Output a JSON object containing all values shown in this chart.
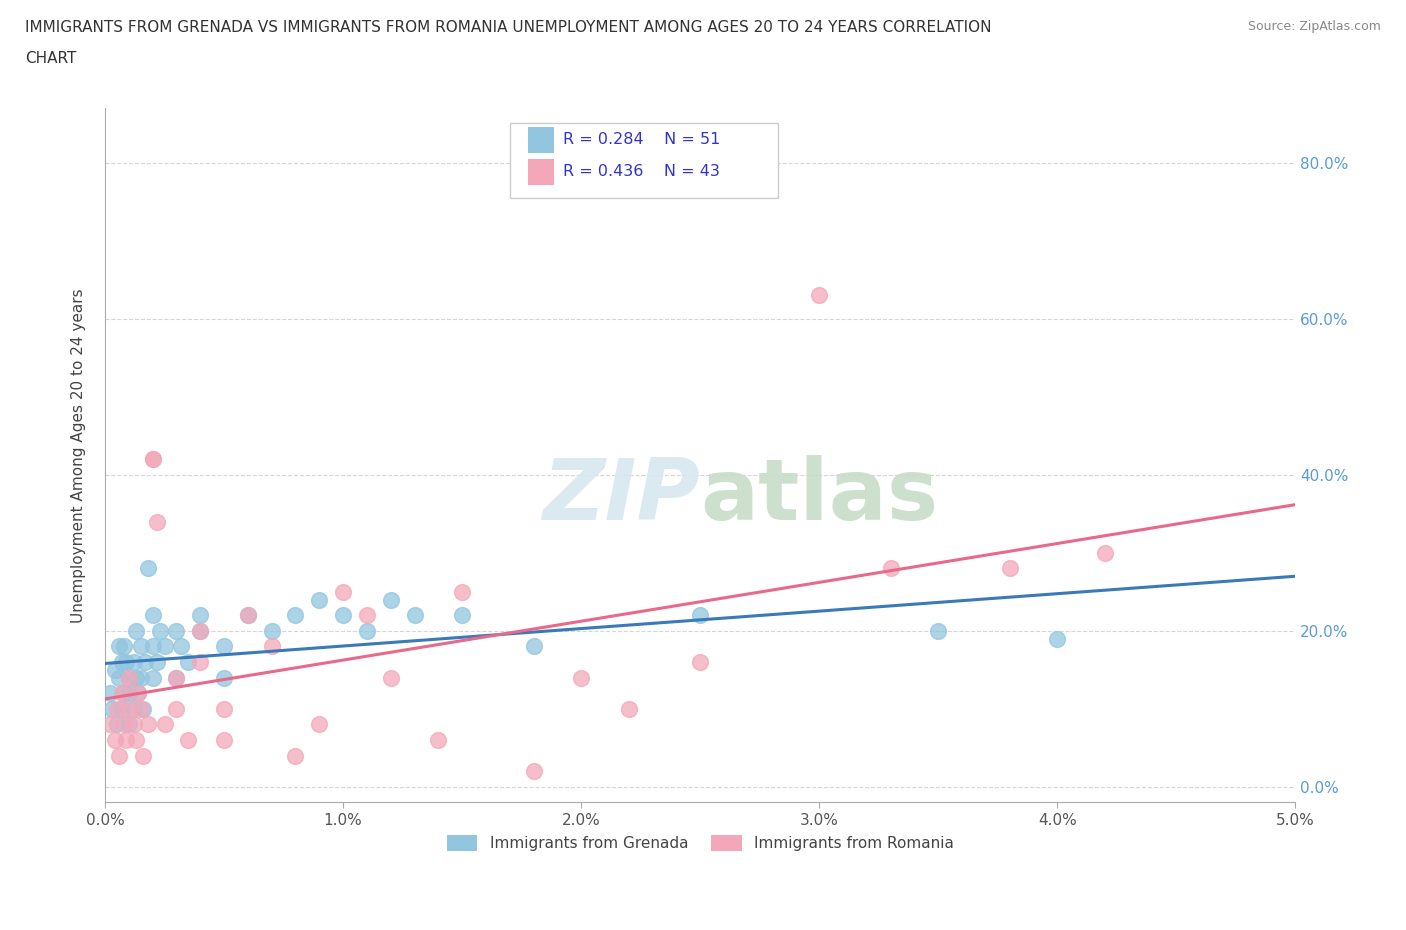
{
  "title_line1": "IMMIGRANTS FROM GRENADA VS IMMIGRANTS FROM ROMANIA UNEMPLOYMENT AMONG AGES 20 TO 24 YEARS CORRELATION",
  "title_line2": "CHART",
  "source": "Source: ZipAtlas.com",
  "ylabel": "Unemployment Among Ages 20 to 24 years",
  "xlim": [
    0.0,
    0.05
  ],
  "ylim": [
    -0.02,
    0.87
  ],
  "yticks": [
    0.0,
    0.2,
    0.4,
    0.6,
    0.8
  ],
  "ytick_labels": [
    "0.0%",
    "20.0%",
    "40.0%",
    "60.0%",
    "80.0%"
  ],
  "xticks": [
    0.0,
    0.01,
    0.02,
    0.03,
    0.04,
    0.05
  ],
  "xtick_labels": [
    "0.0%",
    "1.0%",
    "2.0%",
    "3.0%",
    "4.0%",
    "5.0%"
  ],
  "grenada_R": "R = 0.284",
  "grenada_N": "N = 51",
  "romania_R": "R = 0.436",
  "romania_N": "N = 43",
  "blue_color": "#92c5de",
  "pink_color": "#f4a7b9",
  "blue_line_color": "#3a7ab8",
  "pink_line_color": "#e8698a",
  "legend_text_color": "#3333cc",
  "tick_color": "#5a9bd5",
  "grenada_x": [
    0.0002,
    0.0003,
    0.0004,
    0.0005,
    0.0006,
    0.0006,
    0.0007,
    0.0007,
    0.0008,
    0.0008,
    0.0009,
    0.001,
    0.001,
    0.001,
    0.0012,
    0.0012,
    0.0013,
    0.0013,
    0.0014,
    0.0015,
    0.0015,
    0.0016,
    0.0017,
    0.0018,
    0.002,
    0.002,
    0.002,
    0.0022,
    0.0023,
    0.0025,
    0.003,
    0.003,
    0.0032,
    0.0035,
    0.004,
    0.004,
    0.005,
    0.005,
    0.006,
    0.007,
    0.008,
    0.009,
    0.01,
    0.011,
    0.012,
    0.013,
    0.015,
    0.018,
    0.025,
    0.035,
    0.04
  ],
  "grenada_y": [
    0.12,
    0.1,
    0.15,
    0.08,
    0.14,
    0.18,
    0.1,
    0.16,
    0.12,
    0.18,
    0.16,
    0.12,
    0.08,
    0.14,
    0.16,
    0.1,
    0.2,
    0.14,
    0.12,
    0.18,
    0.14,
    0.1,
    0.16,
    0.28,
    0.14,
    0.18,
    0.22,
    0.16,
    0.2,
    0.18,
    0.14,
    0.2,
    0.18,
    0.16,
    0.2,
    0.22,
    0.18,
    0.14,
    0.22,
    0.2,
    0.22,
    0.24,
    0.22,
    0.2,
    0.24,
    0.22,
    0.22,
    0.18,
    0.22,
    0.2,
    0.19
  ],
  "romania_x": [
    0.0002,
    0.0004,
    0.0005,
    0.0006,
    0.0007,
    0.0008,
    0.0009,
    0.001,
    0.001,
    0.0012,
    0.0013,
    0.0014,
    0.0015,
    0.0016,
    0.0018,
    0.002,
    0.002,
    0.0022,
    0.0025,
    0.003,
    0.003,
    0.0035,
    0.004,
    0.004,
    0.005,
    0.005,
    0.006,
    0.007,
    0.008,
    0.009,
    0.01,
    0.011,
    0.012,
    0.014,
    0.015,
    0.018,
    0.02,
    0.022,
    0.025,
    0.03,
    0.033,
    0.038,
    0.042
  ],
  "romania_y": [
    0.08,
    0.06,
    0.1,
    0.04,
    0.12,
    0.08,
    0.06,
    0.1,
    0.14,
    0.08,
    0.06,
    0.12,
    0.1,
    0.04,
    0.08,
    0.42,
    0.42,
    0.34,
    0.08,
    0.14,
    0.1,
    0.06,
    0.2,
    0.16,
    0.1,
    0.06,
    0.22,
    0.18,
    0.04,
    0.08,
    0.25,
    0.22,
    0.14,
    0.06,
    0.25,
    0.02,
    0.14,
    0.1,
    0.16,
    0.63,
    0.28,
    0.28,
    0.3
  ]
}
